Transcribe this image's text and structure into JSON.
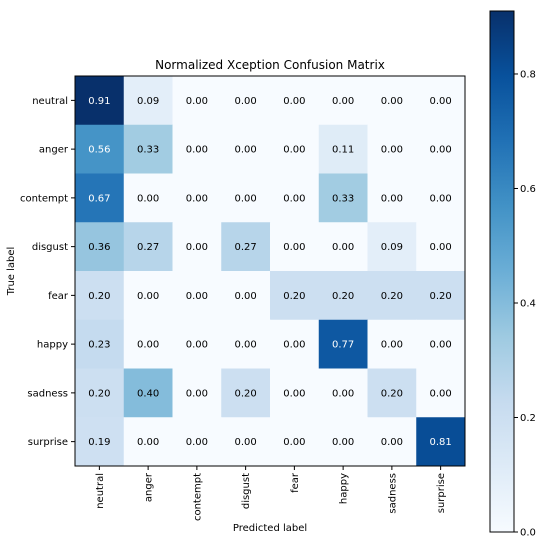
{
  "chart_data": {
    "type": "heatmap",
    "title": "Normalized Xception Confusion Matrix",
    "xlabel": "Predicted label",
    "ylabel": "True label",
    "x_categories": [
      "neutral",
      "anger",
      "contempt",
      "disgust",
      "fear",
      "happy",
      "sadness",
      "surprise"
    ],
    "y_categories": [
      "neutral",
      "anger",
      "contempt",
      "disgust",
      "fear",
      "happy",
      "sadness",
      "surprise"
    ],
    "values": [
      [
        0.91,
        0.09,
        0.0,
        0.0,
        0.0,
        0.0,
        0.0,
        0.0
      ],
      [
        0.56,
        0.33,
        0.0,
        0.0,
        0.0,
        0.11,
        0.0,
        0.0
      ],
      [
        0.67,
        0.0,
        0.0,
        0.0,
        0.0,
        0.33,
        0.0,
        0.0
      ],
      [
        0.36,
        0.27,
        0.0,
        0.27,
        0.0,
        0.0,
        0.09,
        0.0
      ],
      [
        0.2,
        0.0,
        0.0,
        0.0,
        0.2,
        0.2,
        0.2,
        0.2
      ],
      [
        0.23,
        0.0,
        0.0,
        0.0,
        0.0,
        0.77,
        0.0,
        0.0
      ],
      [
        0.2,
        0.4,
        0.0,
        0.2,
        0.0,
        0.0,
        0.2,
        0.0
      ],
      [
        0.19,
        0.0,
        0.0,
        0.0,
        0.0,
        0.0,
        0.0,
        0.81
      ]
    ],
    "value_format": "0.00",
    "colormap": "Blues",
    "color_range": [
      0.0,
      0.91
    ],
    "colorbar": {
      "ticks": [
        0.0,
        0.2,
        0.4,
        0.6,
        0.8
      ],
      "tick_labels": [
        "0.0",
        "0.2",
        "0.4",
        "0.6",
        "0.8"
      ]
    },
    "grid": false,
    "legend": "colorbar-right"
  }
}
